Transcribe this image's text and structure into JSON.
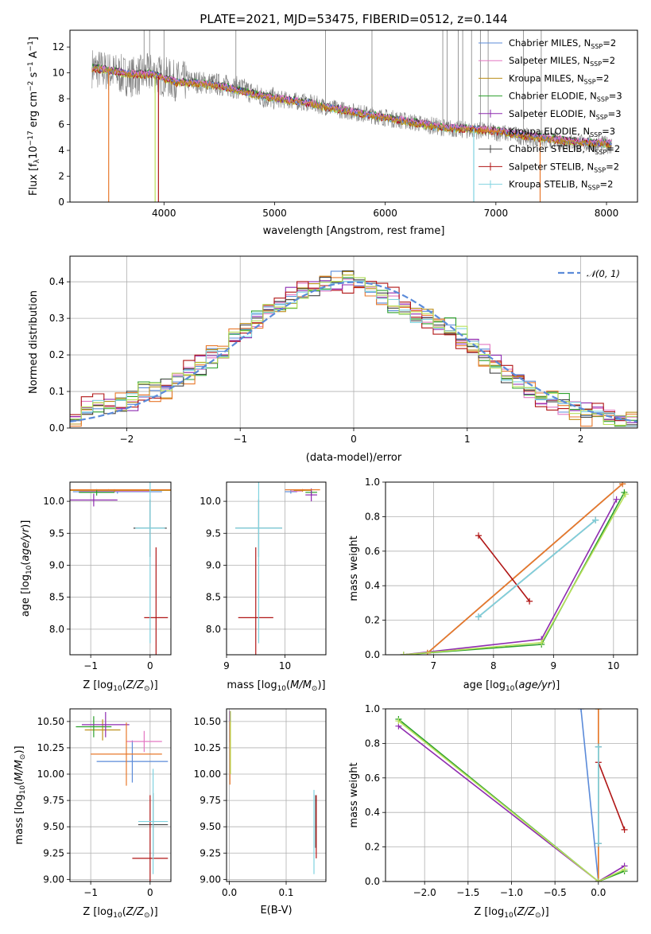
{
  "figure": {
    "title": "PLATE=2021, MJD=53475, FIBERID=0512, z=0.144",
    "series": [
      {
        "name": "Chabrier MILES, N$_{SSP}$=2",
        "name_html": "Chabrier MILES, N<tspan font-size='8' dy='3'>SSP</tspan><tspan dy='-3'>=2</tspan>",
        "color": "#5b8bd9"
      },
      {
        "name": "Salpeter MILES, N$_{SSP}$=2",
        "name_html": "Salpeter MILES, N<tspan font-size='8' dy='3'>SSP</tspan><tspan dy='-3'>=2</tspan>",
        "color": "#e377c2"
      },
      {
        "name": "Kroupa MILES, N$_{SSP}$=2",
        "name_html": "Kroupa MILES, N<tspan font-size='8' dy='3'>SSP</tspan><tspan dy='-3'>=2</tspan>",
        "color": "#bc8f1a"
      },
      {
        "name": "Chabrier ELODIE, N$_{SSP}$=3",
        "name_html": "Chabrier ELODIE, N<tspan font-size='8' dy='3'>SSP</tspan><tspan dy='-3'>=3</tspan>",
        "color": "#2ca02c"
      },
      {
        "name": "Salpeter ELODIE, N$_{SSP}$=3",
        "name_html": "Salpeter ELODIE, N<tspan font-size='8' dy='3'>SSP</tspan><tspan dy='-3'>=3</tspan>",
        "color": "#8e2bb0"
      },
      {
        "name": "Kroupa ELODIE, N$_{SSP}$=3",
        "name_html": "Kroupa ELODIE, N<tspan font-size='8' dy='3'>SSP</tspan><tspan dy='-3'>=3</tspan>",
        "color": "#e8782b"
      },
      {
        "name": "Chabrier STELIB, N$_{SSP}$=2",
        "name_html": "Chabrier STELIB, N<tspan font-size='8' dy='3'>SSP</tspan><tspan dy='-3'>=2</tspan>",
        "color": "#444444"
      },
      {
        "name": "Salpeter STELIB, N$_{SSP}$=2",
        "name_html": "Salpeter STELIB, N<tspan font-size='8' dy='3'>SSP</tspan><tspan dy='-3'>=2</tspan>",
        "color": "#b01515"
      },
      {
        "name": "Kroupa STELIB, N$_{SSP}$=2",
        "name_html": "Kroupa STELIB, N<tspan font-size='8' dy='3'>SSP</tspan><tspan dy='-3'>=2</tspan>",
        "color": "#7fd3e0"
      }
    ],
    "data_color": "#808080",
    "normal_color": "#5b8bd9",
    "extra_colors": {
      "lightgreen": "#b8e05a"
    }
  },
  "chart_data": [
    {
      "id": "spectrum",
      "type": "line",
      "xlabel": "wavelength [Angstrom, rest frame]",
      "ylabel": "Flux [f$_\\lambda$10$^{-17}$ erg cm$^{-2}$ s$^{-1}$ A$^{-1}$]",
      "xlim": [
        3150,
        8280
      ],
      "ylim": [
        0,
        13.3
      ],
      "xticks": [
        4000,
        5000,
        6000,
        7000,
        8000
      ],
      "yticks": [
        0,
        2,
        4,
        6,
        8,
        10,
        12
      ],
      "grid": false,
      "legend": "upper right",
      "data_spectrum_envelope": {
        "x": [
          3350,
          3500,
          3700,
          3900,
          4100,
          4300,
          4500,
          4700,
          4900,
          5100,
          5300,
          5500,
          5700,
          5900,
          6100,
          6300,
          6500,
          6700,
          6900,
          7100,
          7300,
          7500,
          7700,
          7900,
          8050
        ],
        "y": [
          10.4,
          10.1,
          9.7,
          10.0,
          9.4,
          9.3,
          9.1,
          8.8,
          8.1,
          7.9,
          7.7,
          7.3,
          7.0,
          6.7,
          6.4,
          6.1,
          5.8,
          5.6,
          5.5,
          5.3,
          5.0,
          4.8,
          4.6,
          4.5,
          4.4
        ]
      },
      "model_continuum": {
        "x": [
          3350,
          3500,
          3700,
          3900,
          4100,
          4300,
          4500,
          4700,
          4900,
          5100,
          5300,
          5500,
          5700,
          5900,
          6100,
          6300,
          6500,
          6700,
          6900,
          7100,
          7300,
          7500,
          7700,
          7900,
          8050
        ],
        "y": [
          10.4,
          10.2,
          9.9,
          9.9,
          9.3,
          9.2,
          9.0,
          8.6,
          8.2,
          7.9,
          7.7,
          7.3,
          7.0,
          6.7,
          6.4,
          6.1,
          5.8,
          5.7,
          5.6,
          5.4,
          5.1,
          4.9,
          4.7,
          4.6,
          4.5
        ]
      }
    },
    {
      "id": "residuals",
      "type": "histogram",
      "xlabel": "(data-model)/error",
      "ylabel": "Normed distribution",
      "xlim": [
        -2.5,
        2.5
      ],
      "ylim": [
        0,
        0.47
      ],
      "xticks": [
        -2,
        -1,
        0,
        1,
        2
      ],
      "yticks": [
        0.0,
        0.1,
        0.2,
        0.3,
        0.4
      ],
      "grid": true,
      "legend": "upper right",
      "normal_label": "$\\mathcal{N}(0,1)$",
      "normal_label_html": "𝒩(0, 1)",
      "bin_edges_start": -2.5,
      "bin_width": 0.1,
      "base_values": [
        0.04,
        0.05,
        0.06,
        0.06,
        0.07,
        0.08,
        0.1,
        0.1,
        0.11,
        0.13,
        0.15,
        0.17,
        0.2,
        0.21,
        0.25,
        0.27,
        0.3,
        0.32,
        0.33,
        0.35,
        0.37,
        0.38,
        0.4,
        0.41,
        0.41,
        0.4,
        0.38,
        0.36,
        0.34,
        0.32,
        0.31,
        0.3,
        0.29,
        0.27,
        0.25,
        0.22,
        0.2,
        0.17,
        0.15,
        0.13,
        0.11,
        0.09,
        0.08,
        0.06,
        0.05,
        0.04,
        0.03,
        0.03,
        0.02,
        0.02
      ]
    },
    {
      "id": "age_vs_Z",
      "type": "errorbar",
      "xlabel": "Z [log$_{10}$(Z/Z$_\\odot$)]",
      "ylabel": "age  [log$_{10}$(age/yr)]",
      "xlim": [
        -1.35,
        0.35
      ],
      "ylim": [
        7.6,
        10.3
      ],
      "xticks": [
        -1,
        0
      ],
      "yticks": [
        8.0,
        8.5,
        9.0,
        9.5,
        10.0
      ],
      "grid": true,
      "points": [
        {
          "s": 0,
          "x": -0.55,
          "y": 10.15,
          "xe": 0.75,
          "ye": 0.03
        },
        {
          "s": 1,
          "x": -0.6,
          "y": 10.16,
          "xe": 0.6,
          "ye": 0.02
        },
        {
          "s": 2,
          "x": -0.6,
          "y": 10.17,
          "xe": 1.1,
          "ye": 0.02
        },
        {
          "s": 3,
          "x": -0.9,
          "y": 10.14,
          "xe": 0.3,
          "ye": 0.05
        },
        {
          "s": 4,
          "x": -0.95,
          "y": 10.02,
          "xe": 0.4,
          "ye": 0.1
        },
        {
          "s": 5,
          "x": -0.7,
          "y": 10.18,
          "xe": 1.1,
          "ye": 0.01
        },
        {
          "s": 6,
          "x": 0.0,
          "y": 9.58,
          "xe": 0.28,
          "ye": 0.45
        },
        {
          "s": 7,
          "x": 0.1,
          "y": 8.18,
          "xe": 0.2,
          "ye": 1.1
        },
        {
          "s": 8,
          "x": 0.0,
          "y": 9.58,
          "xe": 0.25,
          "ye": 1.8
        }
      ]
    },
    {
      "id": "age_vs_mass",
      "type": "errorbar",
      "xlabel": "mass [log$_{10}$(M/M$_\\odot$)]",
      "xlim": [
        9.0,
        10.7
      ],
      "ylim": [
        7.6,
        10.3
      ],
      "xticks": [
        9,
        10
      ],
      "yticks": [
        8.0,
        8.5,
        9.0,
        9.5,
        10.0
      ],
      "grid": true,
      "points": [
        {
          "s": 0,
          "x": 10.1,
          "y": 10.15,
          "xe": 0.1,
          "ye": 0.03
        },
        {
          "s": 1,
          "x": 10.2,
          "y": 10.16,
          "xe": 0.1,
          "ye": 0.02
        },
        {
          "s": 2,
          "x": 10.3,
          "y": 10.17,
          "xe": 0.15,
          "ye": 0.02
        },
        {
          "s": 3,
          "x": 10.45,
          "y": 10.14,
          "xe": 0.1,
          "ye": 0.05
        },
        {
          "s": 4,
          "x": 10.45,
          "y": 10.1,
          "xe": 0.1,
          "ye": 0.1
        },
        {
          "s": 5,
          "x": 10.3,
          "y": 10.18,
          "xe": 0.3,
          "ye": 0.01
        },
        {
          "s": 6,
          "x": 9.55,
          "y": 9.58,
          "xe": 0.4,
          "ye": 0.45
        },
        {
          "s": 7,
          "x": 9.5,
          "y": 8.18,
          "xe": 0.3,
          "ye": 1.1
        },
        {
          "s": 8,
          "x": 9.55,
          "y": 9.58,
          "xe": 0.4,
          "ye": 1.8
        }
      ]
    },
    {
      "id": "weight_vs_age",
      "type": "line",
      "xlabel": "age  [log$_{10}$(age/yr)]",
      "ylabel": "mass weight",
      "xlim": [
        6.2,
        10.4
      ],
      "ylim": [
        0,
        1.0
      ],
      "xticks": [
        7,
        8,
        9,
        10
      ],
      "yticks": [
        0.0,
        0.2,
        0.4,
        0.6,
        0.8,
        1.0
      ],
      "grid": true,
      "lines": [
        {
          "s": 0,
          "x": [
            6.9,
            10.15
          ],
          "y": [
            0.01,
            0.99
          ]
        },
        {
          "s": 1,
          "x": [
            6.9,
            10.15
          ],
          "y": [
            0.01,
            0.99
          ]
        },
        {
          "s": 2,
          "x": [
            6.9,
            10.15
          ],
          "y": [
            0.01,
            0.99
          ]
        },
        {
          "s": 3,
          "x": [
            6.5,
            8.8,
            10.18
          ],
          "y": [
            0.0,
            0.06,
            0.94
          ]
        },
        {
          "s": 4,
          "x": [
            6.5,
            8.8,
            10.05
          ],
          "y": [
            0.0,
            0.09,
            0.9
          ]
        },
        {
          "s": 5,
          "x": [
            6.9,
            10.15
          ],
          "y": [
            0.01,
            0.99
          ]
        },
        {
          "s": 6,
          "x": [
            7.75,
            9.7
          ],
          "y": [
            0.22,
            0.78
          ]
        },
        {
          "s": 7,
          "x": [
            7.75,
            8.6
          ],
          "y": [
            0.69,
            0.31
          ]
        },
        {
          "s": 8,
          "x": [
            7.75,
            9.7
          ],
          "y": [
            0.22,
            0.78
          ]
        },
        {
          "s": 9,
          "x": [
            6.5,
            8.8,
            10.2
          ],
          "y": [
            0.0,
            0.07,
            0.93
          ]
        }
      ]
    },
    {
      "id": "mass_vs_Z",
      "type": "errorbar",
      "xlabel": "Z [log$_{10}$(Z/Z$_\\odot$)]",
      "ylabel": "mass [log$_{10}$(M/M$_\\odot$)]",
      "xlim": [
        -1.35,
        0.35
      ],
      "ylim": [
        8.98,
        10.62
      ],
      "xticks": [
        -1,
        0
      ],
      "yticks": [
        9.0,
        9.25,
        9.5,
        9.75,
        10.0,
        10.25,
        10.5
      ],
      "grid": true,
      "points": [
        {
          "s": 0,
          "x": -0.3,
          "y": 10.12,
          "xe": 0.6,
          "ye": 0.2
        },
        {
          "s": 1,
          "x": -0.1,
          "y": 10.31,
          "xe": 0.3,
          "ye": 0.1
        },
        {
          "s": 2,
          "x": -0.8,
          "y": 10.42,
          "xe": 0.3,
          "ye": 0.1
        },
        {
          "s": 3,
          "x": -0.95,
          "y": 10.45,
          "xe": 0.3,
          "ye": 0.1
        },
        {
          "s": 4,
          "x": -0.75,
          "y": 10.47,
          "xe": 0.4,
          "ye": 0.12
        },
        {
          "s": 5,
          "x": -0.4,
          "y": 10.19,
          "xe": 0.6,
          "ye": 0.3
        },
        {
          "s": 6,
          "x": 0.05,
          "y": 9.52,
          "xe": 0.25,
          "ye": 0.3
        },
        {
          "s": 7,
          "x": 0.0,
          "y": 9.2,
          "xe": 0.3,
          "ye": 0.6
        },
        {
          "s": 8,
          "x": 0.05,
          "y": 9.55,
          "xe": 0.25,
          "ye": 0.5
        }
      ]
    },
    {
      "id": "mass_vs_ebv",
      "type": "errorbar",
      "xlabel": "E(B-V)",
      "xlim": [
        -0.005,
        0.17
      ],
      "ylim": [
        8.98,
        10.62
      ],
      "xticks": [
        0.0,
        0.1
      ],
      "yticks": [
        9.0,
        9.25,
        9.5,
        9.75,
        10.0,
        10.25,
        10.5
      ],
      "grid": true,
      "points": [
        {
          "s": 4,
          "x": 0.001,
          "y": 10.45,
          "xe": 0.0,
          "ye": 0.15
        },
        {
          "s": 5,
          "x": 0.001,
          "y": 10.2,
          "xe": 0.0,
          "ye": 0.3
        },
        {
          "s": 9,
          "x": 0.002,
          "y": 10.3,
          "xe": 0.0,
          "ye": 0.3
        },
        {
          "s": 6,
          "x": 0.152,
          "y": 9.55,
          "xe": 0.0,
          "ye": 0.25
        },
        {
          "s": 7,
          "x": 0.153,
          "y": 9.5,
          "xe": 0.0,
          "ye": 0.3
        },
        {
          "s": 8,
          "x": 0.149,
          "y": 9.45,
          "xe": 0.0,
          "ye": 0.4
        }
      ]
    },
    {
      "id": "weight_vs_Z",
      "type": "line",
      "xlabel": "Z [log$_{10}$(Z/Z$_\\odot$)]",
      "ylabel": "mass weight",
      "xlim": [
        -2.45,
        0.45
      ],
      "ylim": [
        0,
        1.0
      ],
      "xticks": [
        -2.0,
        -1.5,
        -1.0,
        -0.5,
        0.0
      ],
      "yticks": [
        0.0,
        0.2,
        0.4,
        0.6,
        0.8,
        1.0
      ],
      "grid": true,
      "lines": [
        {
          "s": 0,
          "x": [
            -0.2,
            0.0
          ],
          "y": [
            1.0,
            0.0
          ]
        },
        {
          "s": 2,
          "x": [
            0.0,
            0.0
          ],
          "y": [
            0.0,
            1.0
          ]
        },
        {
          "s": 5,
          "x": [
            0.0,
            0.0
          ],
          "y": [
            0.0,
            1.0
          ]
        },
        {
          "s": 3,
          "x": [
            -2.3,
            0.0,
            0.3
          ],
          "y": [
            0.94,
            0.0,
            0.06
          ]
        },
        {
          "s": 4,
          "x": [
            -2.3,
            0.0,
            0.3
          ],
          "y": [
            0.9,
            0.0,
            0.09
          ]
        },
        {
          "s": 9,
          "x": [
            -2.3,
            0.0,
            0.3
          ],
          "y": [
            0.93,
            0.0,
            0.07
          ]
        },
        {
          "s": 6,
          "x": [
            0.0,
            0.0
          ],
          "y": [
            0.22,
            0.78
          ]
        },
        {
          "s": 7,
          "x": [
            0.0,
            0.3
          ],
          "y": [
            0.69,
            0.3
          ]
        },
        {
          "s": 8,
          "x": [
            0.0,
            0.0
          ],
          "y": [
            0.22,
            0.78
          ]
        }
      ]
    }
  ]
}
